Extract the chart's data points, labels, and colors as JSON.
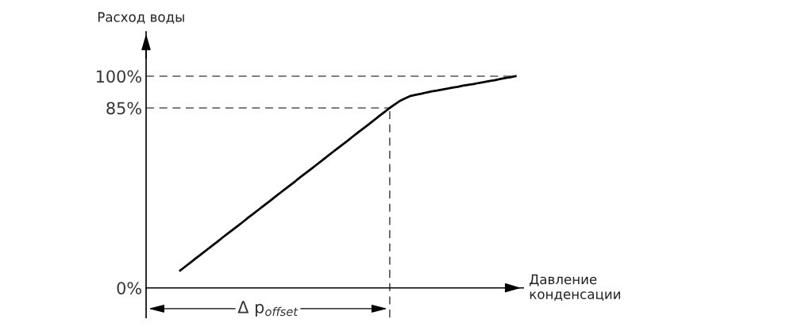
{
  "chart_data": {
    "type": "line",
    "ylabel": "Расход воды",
    "categories": [
      null,
      null,
      null,
      null,
      null,
      null,
      null,
      null,
      null,
      null,
      null,
      null,
      null,
      null,
      null,
      null,
      null,
      null,
      null,
      null,
      null,
      null,
      null,
      null,
      null,
      null,
      null,
      null,
      null,
      null,
      null,
      null,
      null,
      null,
      null,
      null,
      null,
      null,
      null,
      null,
      null,
      null,
      null,
      null,
      null,
      null,
      null,
      null,
      null,
      null,
      null,
      null,
      null,
      null,
      null,
      null,
      null,
      null,
      null,
      null,
      null,
      null,
      null,
      null,
      null,
      null,
      null,
      null,
      null,
      null,
      null,
      null
    ],
    "series": [
      {
        "color": "#000000",
        "values": [
          null,
          null,
          null,
          null,
          null,
          null,
          8.2,
          10.1,
          12.0,
          14.0,
          15.9,
          17.8,
          19.7,
          21.6,
          23.6,
          25.5,
          27.4,
          29.3,
          31.2,
          33.2,
          35.1,
          37.0,
          38.9,
          40.8,
          42.8,
          44.7,
          46.6,
          48.5,
          50.4,
          52.4,
          54.3,
          56.2,
          58.1,
          60.0,
          62.0,
          63.9,
          65.8,
          67.7,
          69.6,
          71.6,
          73.5,
          75.4,
          77.3,
          79.2,
          81.2,
          83.1,
          85.0,
          86.7,
          88.4,
          89.6,
          90.7,
          91.2,
          91.7,
          92.3,
          92.8,
          93.2,
          93.7,
          94.1,
          94.6,
          95.0,
          95.5,
          95.9,
          96.3,
          96.8,
          97.2,
          97.7,
          98.1,
          98.6,
          99.1,
          99.5,
          100,
          null
        ]
      }
    ],
    "ylim": [
      -14,
      121
    ],
    "yticks": [
      {
        "value": 0,
        "label": "0%"
      },
      {
        "value": 85,
        "label": "85%"
      },
      {
        "value": 100,
        "label": "100%"
      }
    ],
    "ref_lines": [
      {
        "axis": "y",
        "value": 100,
        "color": "#555555",
        "line_style": "dashed"
      },
      {
        "axis": "y",
        "value": 85,
        "color": "#555555",
        "line_style": "dashed"
      }
    ],
    "annotations": [
      "Δ p$_{offset}$",
      "Давление\nконденсации"
    ],
    "tick_labels": "y",
    "grid": false,
    "legend": false,
    "marker": "none",
    "line_style": "solid"
  }
}
